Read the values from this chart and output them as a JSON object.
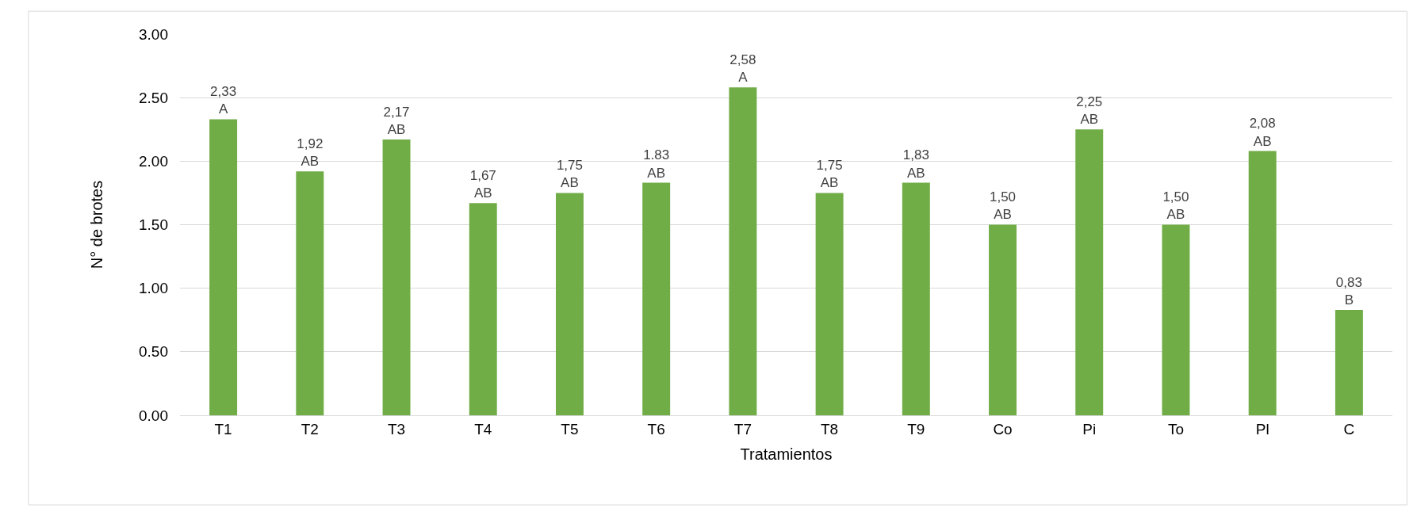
{
  "chart_data": {
    "type": "bar",
    "xlabel": "Tratamientos",
    "ylabel": "N° de brotes",
    "categories": [
      "T1",
      "T2",
      "T3",
      "T4",
      "T5",
      "T6",
      "T7",
      "T8",
      "T9",
      "Co",
      "Pi",
      "To",
      "Pl",
      "C"
    ],
    "values": [
      2.33,
      1.92,
      2.17,
      1.67,
      1.75,
      1.83,
      2.58,
      1.75,
      1.83,
      1.5,
      2.25,
      1.5,
      2.08,
      0.83
    ],
    "value_labels": [
      "2,33\nA",
      "1,92\nAB",
      "2,17\nAB",
      "1,67\nAB",
      "1,75\nAB",
      "1.83\nAB",
      "2,58\nA",
      "1,75\nAB",
      "1,83\nAB",
      "1,50\nAB",
      "2,25\nAB",
      "1,50\nAB",
      "2,08\nAB",
      "0,83\nB"
    ],
    "color": "#70ad47",
    "ylim": [
      0,
      3
    ],
    "yticks": [
      {
        "value": 0,
        "label": "0.00"
      },
      {
        "value": 0.5,
        "label": "0.50"
      },
      {
        "value": 1,
        "label": "1.00"
      },
      {
        "value": 1.5,
        "label": "1.50"
      },
      {
        "value": 2,
        "label": "2.00"
      },
      {
        "value": 2.5,
        "label": "2.50"
      },
      {
        "value": 3,
        "label": "3.00"
      }
    ],
    "grid": "y",
    "legend": false
  }
}
